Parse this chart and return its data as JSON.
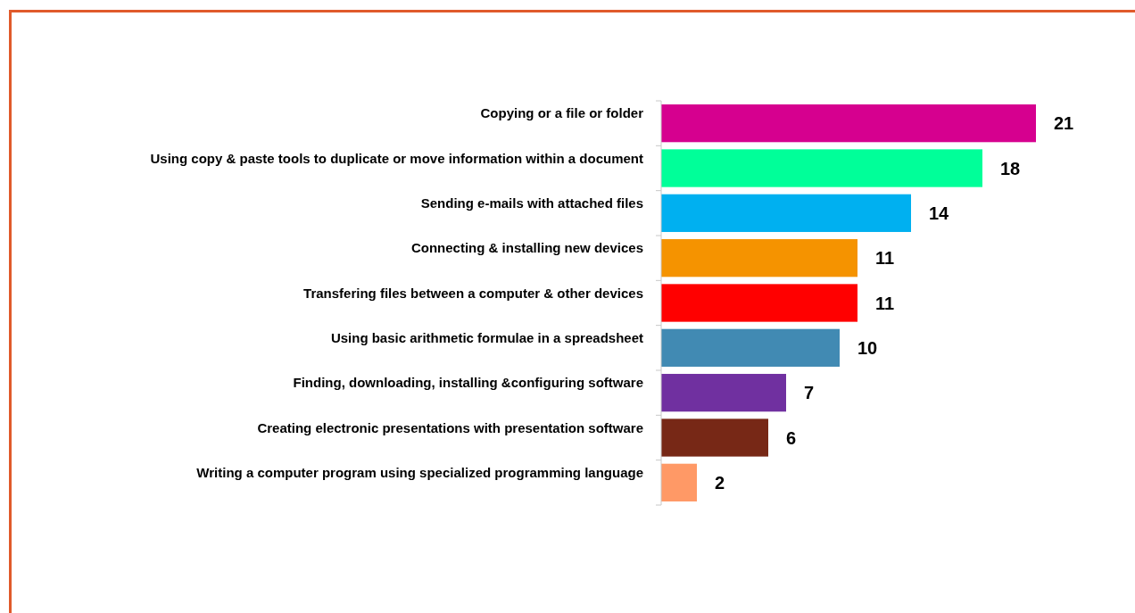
{
  "chart_data": {
    "type": "bar",
    "orientation": "horizontal",
    "categories": [
      "Copying or a file or folder",
      "Using copy & paste tools to duplicate or move information within a document",
      "Sending e-mails with attached files",
      "Connecting & installing new devices",
      "Transfering files between a computer & other devices",
      "Using basic arithmetic formulae in a spreadsheet",
      "Finding, downloading, installing &configuring software",
      "Creating electronic presentations with presentation software",
      "Writing a computer program using specialized programming language"
    ],
    "values": [
      21,
      18,
      14,
      11,
      11,
      10,
      7,
      6,
      2
    ],
    "colors": [
      "#d6008f",
      "#00ff99",
      "#00b0f0",
      "#f59300",
      "#ff0000",
      "#418ab3",
      "#7030a0",
      "#772816",
      "#ff9966"
    ],
    "data_labels": true
  }
}
